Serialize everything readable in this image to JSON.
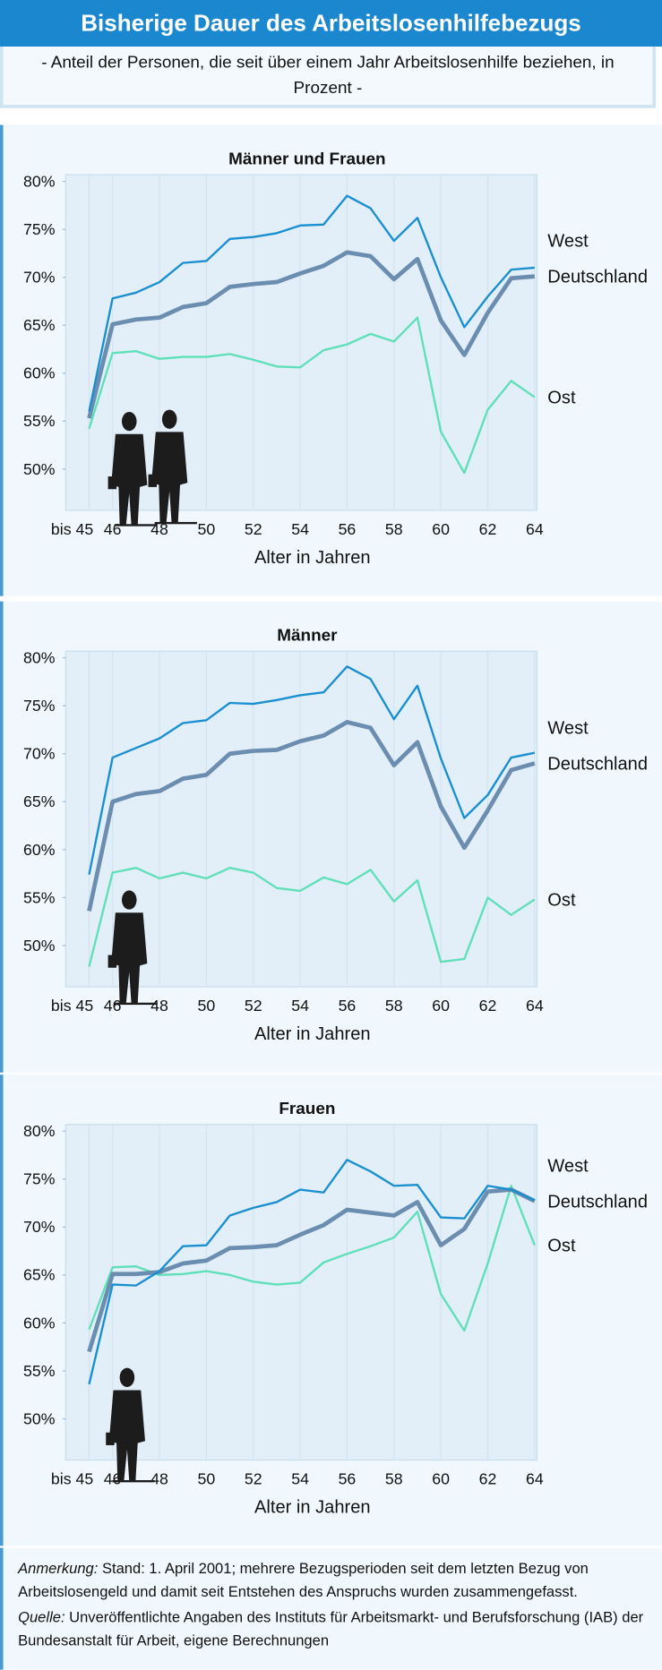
{
  "header": {
    "title": "Bisherige Dauer des Arbeitslosenhilfebezugs",
    "subtitle": "- Anteil der Personen, die seit über einem Jahr Arbeitslosenhilfe beziehen, in Prozent -"
  },
  "chart_data": [
    {
      "type": "line",
      "title": "Männer und Frauen",
      "x_label": "Alter in Jahren",
      "x": [
        45,
        46,
        47,
        48,
        49,
        50,
        51,
        52,
        53,
        54,
        55,
        56,
        57,
        58,
        59,
        60,
        61,
        62,
        63,
        64
      ],
      "xlim": [
        44,
        64.1
      ],
      "xticks": [
        {
          "value": 45,
          "label": "bis 45"
        },
        46,
        48,
        50,
        52,
        54,
        56,
        58,
        60,
        62,
        64
      ],
      "ylim": [
        45.7,
        80.7
      ],
      "yticks": [
        {
          "value": 50,
          "label": "50%"
        },
        {
          "value": 55,
          "label": "55%"
        },
        {
          "value": 60,
          "label": "60%"
        },
        {
          "value": 65,
          "label": "65%"
        },
        {
          "value": 70,
          "label": "70%"
        },
        {
          "value": 75,
          "label": "75%"
        },
        {
          "value": 80,
          "label": "80%"
        }
      ],
      "grid": true,
      "series": [
        {
          "name": "West",
          "color": "#1a8fd0",
          "values": [
            56,
            67.8,
            68.4,
            69.5,
            71.5,
            71.7,
            74.0,
            74.2,
            74.6,
            75.4,
            75.5,
            78.5,
            77.2,
            73.8,
            76.2,
            70.0,
            64.8,
            68.0,
            70.8,
            71.0
          ]
        },
        {
          "name": "Deutschland",
          "color": "#6a8db0",
          "values": [
            55.3,
            65.1,
            65.6,
            65.8,
            66.9,
            67.3,
            69.0,
            69.3,
            69.5,
            70.4,
            71.2,
            72.6,
            72.2,
            69.8,
            71.9,
            65.5,
            61.9,
            66.3,
            69.9,
            70.1
          ]
        },
        {
          "name": "Ost",
          "color": "#5fe0b8",
          "values": [
            54.2,
            62.1,
            62.3,
            61.5,
            61.7,
            61.7,
            62.0,
            61.4,
            60.7,
            60.6,
            62.4,
            63.0,
            64.1,
            63.3,
            65.8,
            53.9,
            49.6,
            56.2,
            59.2,
            57.5
          ]
        }
      ]
    },
    {
      "type": "line",
      "title": "Männer",
      "x_label": "Alter in Jahren",
      "x": [
        45,
        46,
        47,
        48,
        49,
        50,
        51,
        52,
        53,
        54,
        55,
        56,
        57,
        58,
        59,
        60,
        61,
        62,
        63,
        64
      ],
      "xlim": [
        44,
        64.1
      ],
      "xticks": [
        {
          "value": 45,
          "label": "bis 45"
        },
        46,
        48,
        50,
        52,
        54,
        56,
        58,
        60,
        62,
        64
      ],
      "ylim": [
        45.7,
        80.7
      ],
      "yticks": [
        {
          "value": 50,
          "label": "50%"
        },
        {
          "value": 55,
          "label": "55%"
        },
        {
          "value": 60,
          "label": "60%"
        },
        {
          "value": 65,
          "label": "65%"
        },
        {
          "value": 70,
          "label": "70%"
        },
        {
          "value": 75,
          "label": "75%"
        },
        {
          "value": 80,
          "label": "80%"
        }
      ],
      "grid": true,
      "series": [
        {
          "name": "West",
          "color": "#1a8fd0",
          "values": [
            57.4,
            69.6,
            70.6,
            71.6,
            73.2,
            73.5,
            75.3,
            75.2,
            75.6,
            76.1,
            76.4,
            79.1,
            77.8,
            73.6,
            77.1,
            69.5,
            63.3,
            65.7,
            69.6,
            70.1
          ]
        },
        {
          "name": "Deutschland",
          "color": "#6a8db0",
          "values": [
            53.6,
            65.0,
            65.8,
            66.1,
            67.4,
            67.8,
            70.0,
            70.3,
            70.4,
            71.3,
            71.9,
            73.3,
            72.7,
            68.8,
            71.2,
            64.5,
            60.2,
            64.1,
            68.3,
            69.0
          ]
        },
        {
          "name": "Ost",
          "color": "#5fe0b8",
          "values": [
            47.8,
            57.6,
            58.1,
            57.0,
            57.6,
            57.0,
            58.1,
            57.6,
            56.0,
            55.7,
            57.1,
            56.4,
            57.9,
            54.6,
            56.8,
            48.3,
            48.6,
            55.0,
            53.2,
            54.8
          ]
        }
      ]
    },
    {
      "type": "line",
      "title": "Frauen",
      "x_label": "Alter in Jahren",
      "x": [
        45,
        46,
        47,
        48,
        49,
        50,
        51,
        52,
        53,
        54,
        55,
        56,
        57,
        58,
        59,
        60,
        61,
        62,
        63,
        64
      ],
      "xlim": [
        44,
        64.1
      ],
      "xticks": [
        {
          "value": 45,
          "label": "bis 45"
        },
        46,
        48,
        50,
        52,
        54,
        56,
        58,
        60,
        62,
        64
      ],
      "ylim": [
        45.7,
        80.7
      ],
      "yticks": [
        {
          "value": 50,
          "label": "50%"
        },
        {
          "value": 55,
          "label": "55%"
        },
        {
          "value": 60,
          "label": "60%"
        },
        {
          "value": 65,
          "label": "65%"
        },
        {
          "value": 70,
          "label": "70%"
        },
        {
          "value": 75,
          "label": "75%"
        },
        {
          "value": 80,
          "label": "80%"
        }
      ],
      "grid": true,
      "series": [
        {
          "name": "West",
          "color": "#1a8fd0",
          "values": [
            53.6,
            64.0,
            63.9,
            65.4,
            68.0,
            68.1,
            71.2,
            72.0,
            72.6,
            73.9,
            73.6,
            77.0,
            75.8,
            74.3,
            74.4,
            71.0,
            70.9,
            74.3,
            73.9,
            72.8
          ]
        },
        {
          "name": "Deutschland",
          "color": "#6a8db0",
          "values": [
            57.0,
            65.1,
            65.1,
            65.3,
            66.2,
            66.5,
            67.8,
            67.9,
            68.1,
            69.2,
            70.2,
            71.8,
            71.5,
            71.2,
            72.6,
            68.1,
            69.8,
            73.7,
            73.9,
            72.7
          ]
        },
        {
          "name": "Ost",
          "color": "#5fe0b8",
          "values": [
            59.3,
            65.8,
            65.9,
            65.0,
            65.1,
            65.4,
            65.0,
            64.3,
            64.0,
            64.2,
            66.3,
            67.2,
            68.0,
            68.9,
            71.6,
            63.0,
            59.2,
            66.2,
            74.3,
            68.1
          ]
        }
      ]
    }
  ],
  "footer": [
    {
      "label": "Anmerkung:",
      "text": "Stand: 1. April 2001; mehrere Bezugsperioden seit dem letzten Bezug von Arbeitslosengeld und damit seit Entstehen des Anspruchs wurden zusammengefasst."
    },
    {
      "label": "Quelle:",
      "text": "Unveröffentlichte Angaben des Instituts für Arbeitsmarkt- und Berufsforschung (IAB) der Bundesanstalt für Arbeit, eigene Berechnungen"
    }
  ]
}
